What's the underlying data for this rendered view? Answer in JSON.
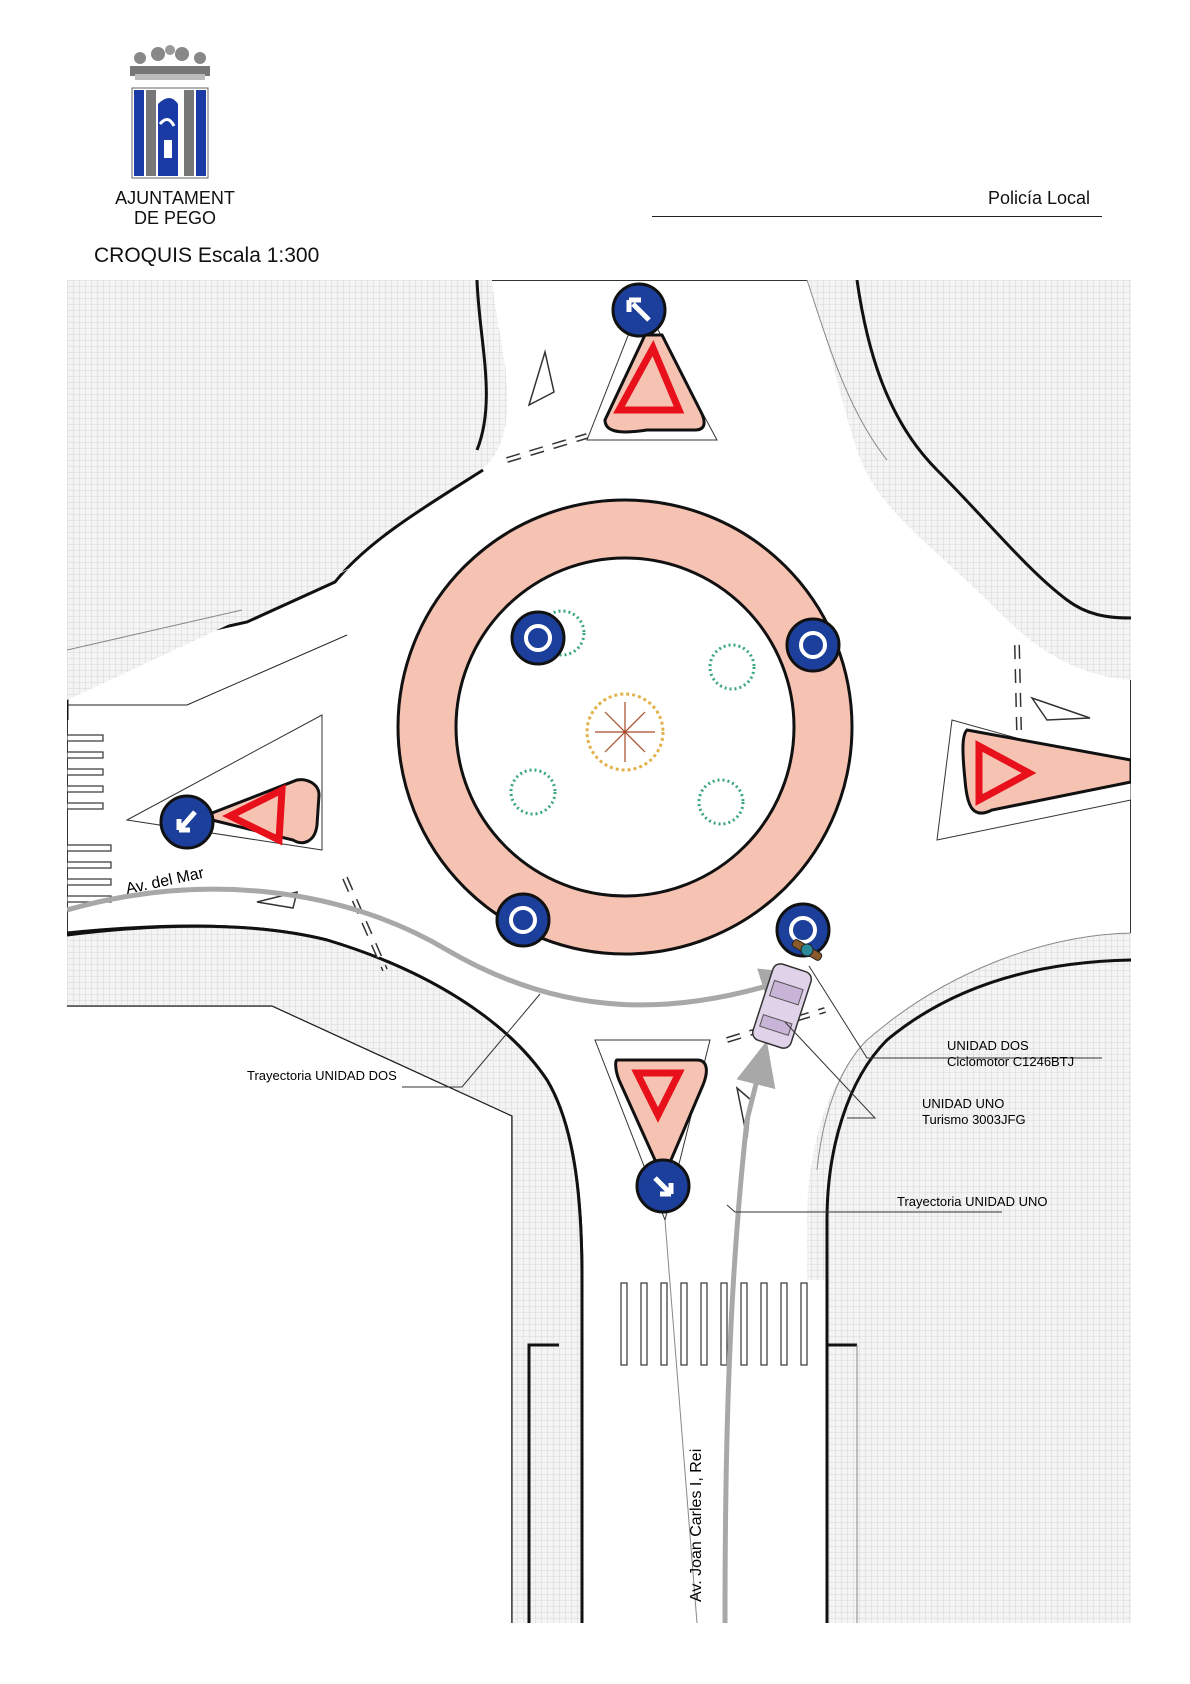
{
  "header": {
    "org_line1": "AJUNTAMENT",
    "org_line2": "DE PEGO",
    "department": "Policía Local",
    "sketch_title": "CROQUIS  Escala 1:300"
  },
  "streets": {
    "west": "Av. del Mar",
    "south": "Av. Joan Carles I, Rei"
  },
  "labels": {
    "trajectory_two": "Trayectoria UNIDAD DOS",
    "trajectory_one": "Trayectoria UNIDAD UNO",
    "unit_two_line1": "UNIDAD DOS",
    "unit_two_line2": "Ciclomotor C1246BTJ",
    "unit_one_line1": "UNIDAD UNO",
    "unit_one_line2": "Turismo 3003JFG"
  },
  "colors": {
    "island_fill": "#f6c3b3",
    "sign_blue": "#1c3f9c",
    "yield_red": "#e8101a",
    "trajectory_gray": "#a8a8a8",
    "car_fill": "#e0d2e8"
  }
}
